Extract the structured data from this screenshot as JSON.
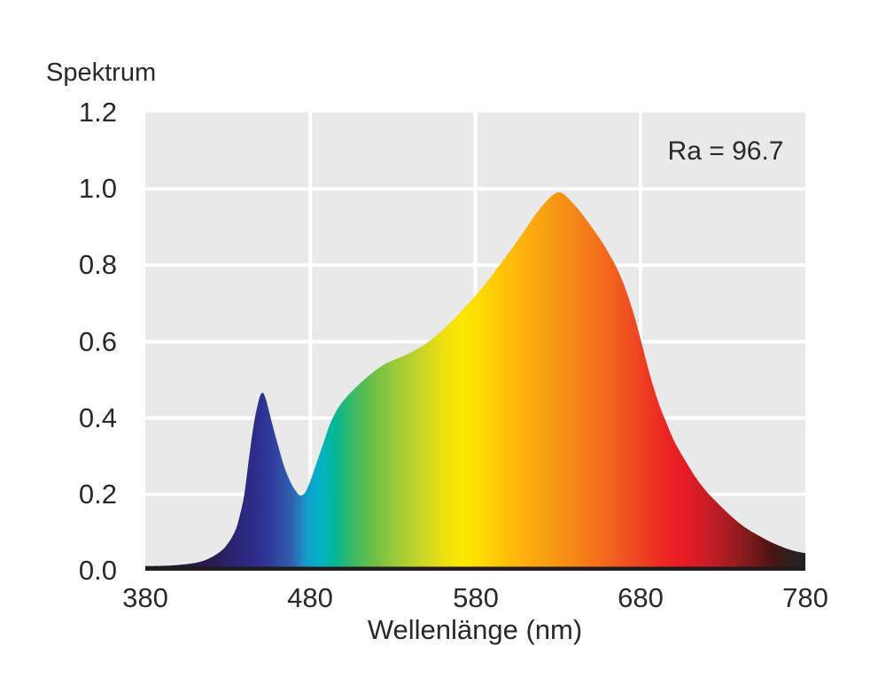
{
  "chart": {
    "text_color": "#2b282a",
    "plot_bg": "#e9e9e9",
    "grid_color": "#ffffff",
    "axis_line_color": "#1f1b1c",
    "page_bg": "#ffffff"
  },
  "chart_data": {
    "type": "area",
    "title": "Spektrum",
    "xlabel": "Wellenlänge (nm)",
    "ylabel": "",
    "annotation": "Ra = 96.7",
    "xlim": [
      380,
      780
    ],
    "ylim": [
      0,
      1.2
    ],
    "grid": true,
    "xticks": {
      "values": [
        380,
        480,
        580,
        680,
        780
      ],
      "labels": [
        "380",
        "480",
        "580",
        "680",
        "780"
      ]
    },
    "yticks": {
      "values": [
        0,
        0.2,
        0.4,
        0.6,
        0.8,
        1.0,
        1.2
      ],
      "labels": [
        "0.0",
        "0.2",
        "0.4",
        "0.6",
        "0.8",
        "1.0",
        "1.2"
      ]
    },
    "series": [
      {
        "name": "Spektrum",
        "points": [
          [
            380,
            0.012
          ],
          [
            392,
            0.013
          ],
          [
            402,
            0.016
          ],
          [
            412,
            0.022
          ],
          [
            420,
            0.035
          ],
          [
            428,
            0.06
          ],
          [
            434,
            0.1
          ],
          [
            437,
            0.14
          ],
          [
            440,
            0.2
          ],
          [
            443,
            0.3
          ],
          [
            446,
            0.39
          ],
          [
            449,
            0.45
          ],
          [
            451,
            0.466
          ],
          [
            453,
            0.45
          ],
          [
            456,
            0.4
          ],
          [
            460,
            0.335
          ],
          [
            464,
            0.275
          ],
          [
            468,
            0.232
          ],
          [
            471,
            0.21
          ],
          [
            474,
            0.197
          ],
          [
            477,
            0.206
          ],
          [
            480,
            0.235
          ],
          [
            484,
            0.285
          ],
          [
            488,
            0.335
          ],
          [
            492,
            0.385
          ],
          [
            497,
            0.427
          ],
          [
            503,
            0.46
          ],
          [
            510,
            0.49
          ],
          [
            518,
            0.52
          ],
          [
            526,
            0.543
          ],
          [
            534,
            0.558
          ],
          [
            542,
            0.574
          ],
          [
            550,
            0.595
          ],
          [
            558,
            0.622
          ],
          [
            566,
            0.655
          ],
          [
            572,
            0.682
          ],
          [
            580,
            0.72
          ],
          [
            588,
            0.762
          ],
          [
            596,
            0.808
          ],
          [
            604,
            0.855
          ],
          [
            612,
            0.905
          ],
          [
            618,
            0.942
          ],
          [
            624,
            0.972
          ],
          [
            628,
            0.987
          ],
          [
            631,
            0.991
          ],
          [
            634,
            0.985
          ],
          [
            638,
            0.968
          ],
          [
            644,
            0.938
          ],
          [
            650,
            0.903
          ],
          [
            656,
            0.866
          ],
          [
            661,
            0.83
          ],
          [
            666,
            0.79
          ],
          [
            671,
            0.738
          ],
          [
            676,
            0.672
          ],
          [
            681,
            0.592
          ],
          [
            686,
            0.51
          ],
          [
            691,
            0.44
          ],
          [
            696,
            0.385
          ],
          [
            701,
            0.335
          ],
          [
            707,
            0.29
          ],
          [
            713,
            0.248
          ],
          [
            719,
            0.213
          ],
          [
            725,
            0.185
          ],
          [
            732,
            0.155
          ],
          [
            739,
            0.128
          ],
          [
            746,
            0.106
          ],
          [
            753,
            0.089
          ],
          [
            760,
            0.073
          ],
          [
            768,
            0.059
          ],
          [
            774,
            0.051
          ],
          [
            780,
            0.046
          ]
        ]
      }
    ],
    "gradient_stops": [
      [
        380,
        "#1c1522"
      ],
      [
        400,
        "#221a38"
      ],
      [
        418,
        "#261c4e"
      ],
      [
        436,
        "#2b2577"
      ],
      [
        450,
        "#2e3192"
      ],
      [
        460,
        "#30459f"
      ],
      [
        470,
        "#2f66b2"
      ],
      [
        478,
        "#129fcc"
      ],
      [
        486,
        "#00b2c4"
      ],
      [
        494,
        "#00b69b"
      ],
      [
        505,
        "#37b969"
      ],
      [
        518,
        "#6cbf46"
      ],
      [
        532,
        "#9cca38"
      ],
      [
        546,
        "#c6d52a"
      ],
      [
        560,
        "#ecdf10"
      ],
      [
        572,
        "#fbe800"
      ],
      [
        584,
        "#ffd903"
      ],
      [
        596,
        "#ffc408"
      ],
      [
        610,
        "#fdb00d"
      ],
      [
        624,
        "#f99d13"
      ],
      [
        638,
        "#f78a17"
      ],
      [
        652,
        "#f4741b"
      ],
      [
        666,
        "#f25b1e"
      ],
      [
        680,
        "#ef4121"
      ],
      [
        694,
        "#ec2723"
      ],
      [
        706,
        "#e81b24"
      ],
      [
        720,
        "#cb1d25"
      ],
      [
        734,
        "#a51c20"
      ],
      [
        748,
        "#77191a"
      ],
      [
        760,
        "#4a1410"
      ],
      [
        772,
        "#292021"
      ],
      [
        780,
        "#242122"
      ]
    ],
    "legend": null
  }
}
